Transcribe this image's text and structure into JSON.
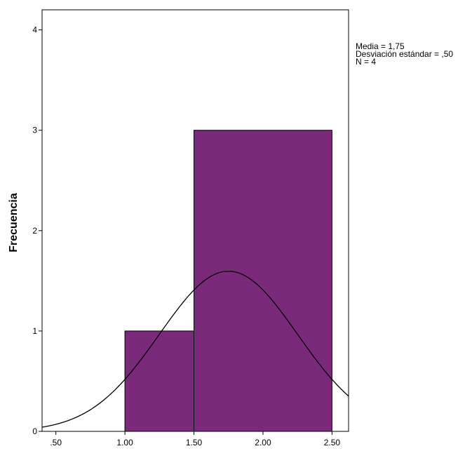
{
  "chart_data": {
    "type": "bar",
    "title": "",
    "xlabel": "",
    "ylabel": "Frecuencia",
    "bins": [
      {
        "x0": 1.0,
        "x1": 1.5,
        "count": 1
      },
      {
        "x0": 1.5,
        "x1": 2.5,
        "count": 3
      }
    ],
    "xlim": [
      0.4,
      2.62
    ],
    "ylim": [
      0,
      4.2
    ],
    "xticks": [
      {
        "value": 0.5,
        "label": ".50"
      },
      {
        "value": 1.0,
        "label": "1.00"
      },
      {
        "value": 1.5,
        "label": "1.50"
      },
      {
        "value": 2.0,
        "label": "2.00"
      },
      {
        "value": 2.5,
        "label": "2.50"
      }
    ],
    "yticks": [
      {
        "value": 0,
        "label": "0"
      },
      {
        "value": 1,
        "label": "1"
      },
      {
        "value": 2,
        "label": "2"
      },
      {
        "value": 3,
        "label": "3"
      },
      {
        "value": 4,
        "label": "4"
      }
    ],
    "normal_curve": {
      "mean": 1.75,
      "sd": 0.5,
      "n": 4,
      "bin_width": 0.5
    },
    "stats": [
      "Media = 1,75",
      "Desviación estándar = ,50",
      "N = 4"
    ],
    "colors": {
      "bar_fill": "#7b2a7b",
      "bar_stroke": "#000000",
      "curve": "#000000",
      "axis": "#000000",
      "background": "#ffffff"
    },
    "grid": false,
    "legend": "none"
  }
}
